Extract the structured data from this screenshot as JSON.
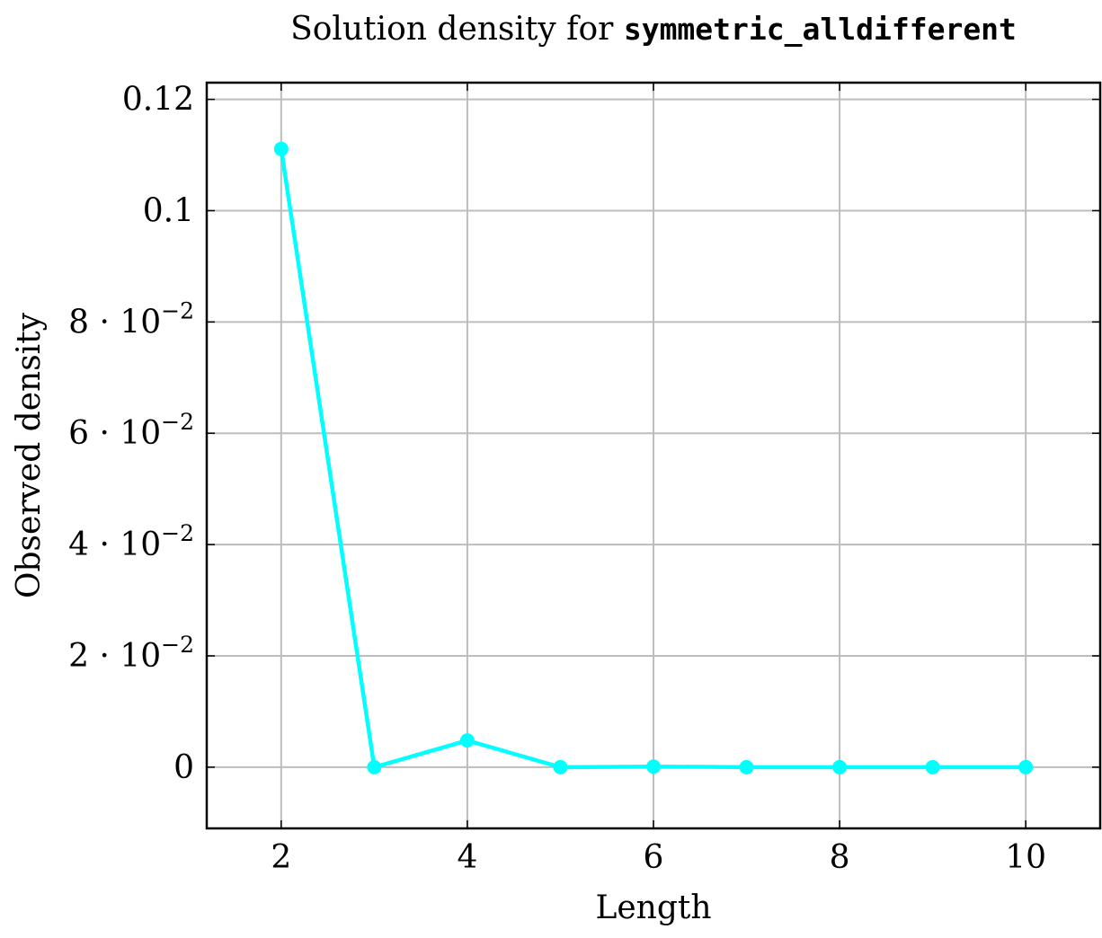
{
  "chart_data": {
    "type": "line",
    "title": {
      "text": "Solution density for ",
      "code": "symmetric_alldifferent"
    },
    "xlabel": "Length",
    "ylabel": "Observed density",
    "xlim": [
      1.2,
      10.8
    ],
    "ylim": [
      -0.011,
      0.123
    ],
    "grid": true,
    "xticks": [
      {
        "value": 2,
        "label": "2"
      },
      {
        "value": 4,
        "label": "4"
      },
      {
        "value": 6,
        "label": "6"
      },
      {
        "value": 8,
        "label": "8"
      },
      {
        "value": 10,
        "label": "10"
      }
    ],
    "yticks": [
      {
        "value": 0,
        "mantissa": "0",
        "exponent": ""
      },
      {
        "value": 0.02,
        "mantissa": "2 · 10",
        "exponent": "−2"
      },
      {
        "value": 0.04,
        "mantissa": "4 · 10",
        "exponent": "−2"
      },
      {
        "value": 0.06,
        "mantissa": "6 · 10",
        "exponent": "−2"
      },
      {
        "value": 0.08,
        "mantissa": "8 · 10",
        "exponent": "−2"
      },
      {
        "value": 0.1,
        "mantissa": "0.1",
        "exponent": ""
      },
      {
        "value": 0.12,
        "mantissa": "0.12",
        "exponent": ""
      }
    ],
    "series": [
      {
        "color": "#00ffff",
        "x": [
          2,
          3,
          4,
          5,
          6,
          7,
          8,
          9,
          10
        ],
        "y": [
          0.1111,
          0.0,
          0.0048,
          0.0,
          0.0001,
          0.0,
          0.0,
          0.0,
          0.0
        ]
      }
    ]
  }
}
